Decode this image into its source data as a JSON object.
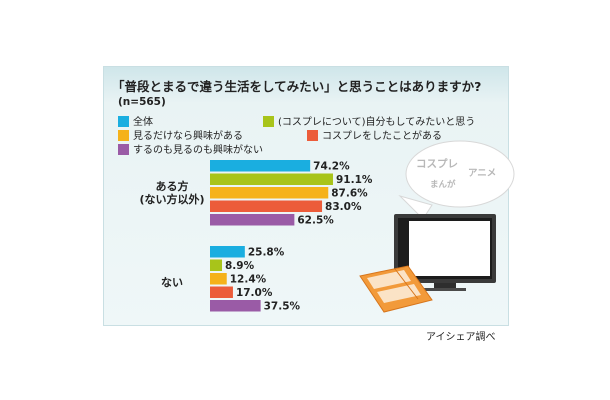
{
  "chart_data": {
    "type": "bar",
    "orientation": "horizontal",
    "title": "「普段とまるで違う生活をしてみたい」と思うことはありますか?",
    "note": "(n=565)",
    "groups": [
      "ある方",
      "ない"
    ],
    "group_sublabels": [
      "(ない方以外)",
      ""
    ],
    "series": [
      {
        "name": "全体",
        "color": "#1aaee0",
        "values": [
          74.2,
          25.8
        ],
        "labels": [
          "74.2%",
          "25.8%"
        ]
      },
      {
        "name": "(コスプレについて)自分もしてみたいと思う",
        "color": "#a8c41a",
        "values": [
          91.1,
          8.9
        ],
        "labels": [
          "91.1%",
          "8.9%"
        ]
      },
      {
        "name": "見るだけなら興味がある",
        "color": "#f5b21a",
        "values": [
          87.6,
          12.4
        ],
        "labels": [
          "87.6%",
          "12.4%"
        ]
      },
      {
        "name": "コスプレをしたことがある",
        "color": "#ec5c3a",
        "values": [
          83.0,
          17.0
        ],
        "labels": [
          "83.0%",
          "17.0%"
        ]
      },
      {
        "name": "するのも見るのも興味がない",
        "color": "#9a5ba6",
        "values": [
          62.5,
          37.5
        ],
        "labels": [
          "62.5%",
          "37.5%"
        ]
      }
    ],
    "xlim": [
      0,
      100
    ],
    "legend_position": "top",
    "grid": false
  },
  "source": "アイシェア調べ",
  "illustration": {
    "bubble_words": [
      "コスプレ",
      "アニメ",
      "まんが"
    ],
    "icons": [
      "speech-bubble-icon",
      "tv-icon",
      "newspaper-icon"
    ]
  }
}
